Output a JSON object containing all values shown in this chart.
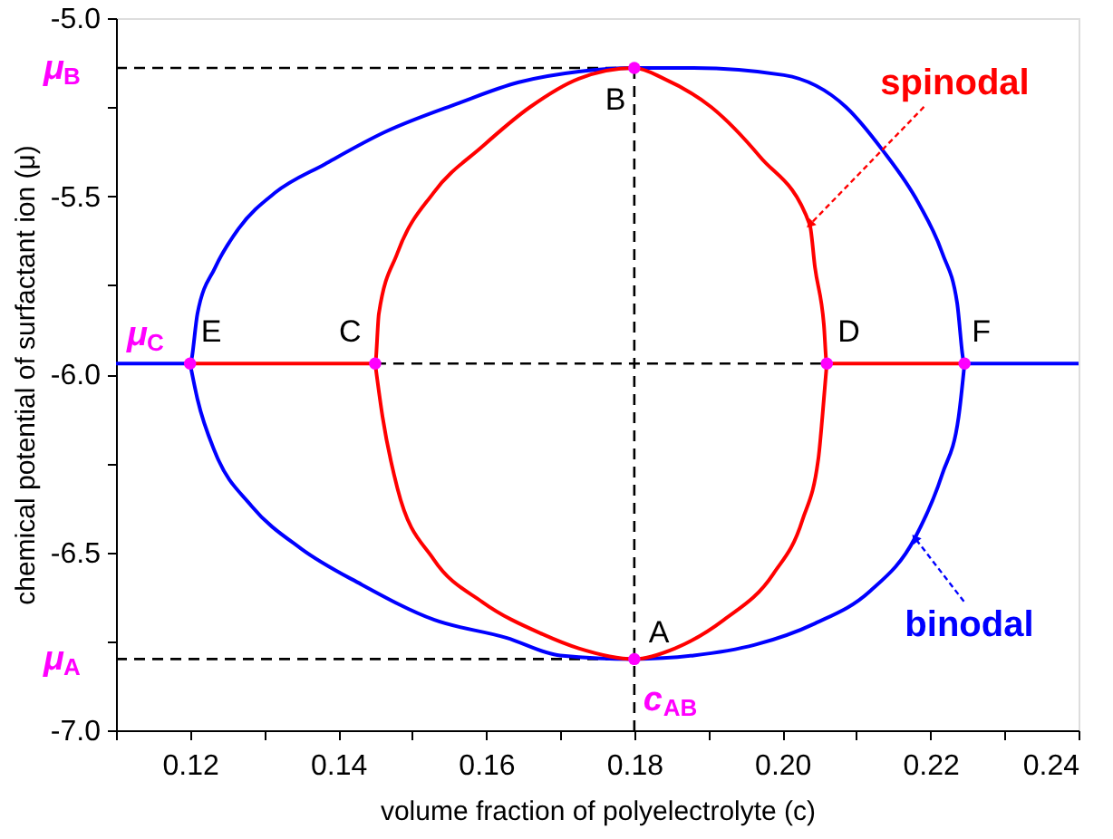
{
  "chart_data": {
    "type": "line",
    "xlabel": "volume fraction of polyelectrolyte (c)",
    "ylabel": "chemical potential of surfactant ion (μ)",
    "xlim": [
      0.11,
      0.24
    ],
    "ylim": [
      -7.0,
      -5.0
    ],
    "xticks": [
      {
        "value": 0.11,
        "label": null
      },
      0.12,
      {
        "value": 0.13,
        "label": null
      },
      0.14,
      {
        "value": 0.15,
        "label": null
      },
      0.16,
      {
        "value": 0.17,
        "label": null
      },
      0.18,
      {
        "value": 0.19,
        "label": null
      },
      {
        "value": 0.2,
        "label": "0.20"
      },
      {
        "value": 0.21,
        "label": null
      },
      0.22,
      {
        "value": 0.23,
        "label": null
      },
      0.24
    ],
    "yticks": [
      {
        "value": -7.0,
        "label": "-7.0"
      },
      {
        "value": -6.75,
        "label": null
      },
      -6.5,
      {
        "value": -6.25,
        "label": null
      },
      {
        "value": -6.0,
        "label": "-6.0"
      },
      {
        "value": -5.75,
        "label": null
      },
      -5.5,
      {
        "value": -5.25,
        "label": null
      },
      {
        "value": -5.0,
        "label": "-5.0"
      }
    ],
    "series": [
      {
        "color": "#000000",
        "line_style": "dashed",
        "x": [
          0.11,
          0.18
        ],
        "values": [
          -5.14,
          -5.14
        ]
      },
      {
        "color": "#000000",
        "line_style": "dashed",
        "x": [
          0.11,
          0.18
        ],
        "values": [
          -6.8,
          -6.8
        ]
      },
      {
        "color": "#000000",
        "line_style": "dashed",
        "x": [
          0.145,
          0.206
        ],
        "values": [
          -5.97,
          -5.97
        ]
      },
      {
        "color": "#000000",
        "line_style": "dashed",
        "x": [
          0.18,
          0.18
        ],
        "values": [
          -5.14,
          -7.0
        ]
      },
      {
        "color": "#0000ff",
        "x": [
          0.11,
          0.12,
          0.121,
          0.1234,
          0.1266,
          0.1315,
          0.1382,
          0.1463,
          0.1561,
          0.1644,
          0.1725,
          0.18,
          0.188,
          0.2002,
          0.2086,
          0.2135,
          0.2184,
          0.2216,
          0.2236,
          0.2246,
          0.24
        ],
        "values": [
          -5.97,
          -5.97,
          -5.83,
          -5.7,
          -5.59,
          -5.49,
          -5.41,
          -5.32,
          -5.24,
          -5.18,
          -5.15,
          -5.14,
          -5.14,
          -5.16,
          -5.25,
          -5.37,
          -5.52,
          -5.66,
          -5.8,
          -5.97,
          -5.97
        ]
      },
      {
        "name": "binodal",
        "color": "#0000ff",
        "x": [
          0.12,
          0.121,
          0.1234,
          0.1283,
          0.135,
          0.1431,
          0.153,
          0.1627,
          0.17,
          0.18,
          0.188,
          0.1963,
          0.2044,
          0.2118,
          0.2179,
          0.2216,
          0.2238,
          0.2246
        ],
        "values": [
          -5.97,
          -6.07,
          -6.22,
          -6.37,
          -6.49,
          -6.59,
          -6.69,
          -6.74,
          -6.79,
          -6.8,
          -6.79,
          -6.76,
          -6.7,
          -6.61,
          -6.46,
          -6.28,
          -6.12,
          -5.97
        ]
      },
      {
        "name": "spinodal",
        "color": "#ff0000",
        "x": [
          0.12,
          0.145,
          0.1455,
          0.148,
          0.1529,
          0.1595,
          0.1659,
          0.1725,
          0.18,
          0.184,
          0.1904,
          0.197,
          0.2037,
          0.2044,
          0.2056,
          0.206,
          0.2246
        ],
        "values": [
          -5.97,
          -5.97,
          -5.83,
          -5.66,
          -5.49,
          -5.36,
          -5.25,
          -5.17,
          -5.14,
          -5.17,
          -5.25,
          -5.39,
          -5.58,
          -5.7,
          -5.86,
          -5.97,
          -5.97
        ]
      },
      {
        "color": "#ff0000",
        "x": [
          0.145,
          0.146,
          0.148,
          0.1529,
          0.1595,
          0.1676,
          0.1725,
          0.18,
          0.1855,
          0.1921,
          0.1988,
          0.2027,
          0.2049,
          0.2054,
          0.206
        ],
        "values": [
          -5.97,
          -6.12,
          -6.32,
          -6.52,
          -6.64,
          -6.73,
          -6.77,
          -6.8,
          -6.77,
          -6.69,
          -6.56,
          -6.41,
          -6.23,
          -6.12,
          -5.97
        ]
      },
      {
        "type": "scatter",
        "color": "#ff00ff",
        "marker": "circle",
        "x": [
          0.18,
          0.18,
          0.145,
          0.206,
          0.12,
          0.2246
        ],
        "values": [
          -6.8,
          -5.14,
          -5.97,
          -5.97,
          -5.97,
          -5.97
        ]
      }
    ],
    "annotations": [
      {
        "text": "A",
        "x": 0.18,
        "y": -6.8
      },
      {
        "text": "B",
        "x": 0.18,
        "y": -5.14
      },
      {
        "text": "C",
        "x": 0.145,
        "y": -5.97
      },
      {
        "text": "D",
        "x": 0.206,
        "y": -5.97
      },
      {
        "text": "E",
        "x": 0.12,
        "y": -5.97
      },
      {
        "text": "F",
        "x": 0.2246,
        "y": -5.97
      },
      {
        "text": "μ$_{B}$",
        "x": 0.11,
        "y": -5.14
      },
      {
        "text": "μ$_{C}$",
        "x": 0.11,
        "y": -5.97
      },
      {
        "text": "μ$_{A}$",
        "x": 0.11,
        "y": -6.8
      },
      {
        "text": "c$_{AB}$",
        "x": 0.18,
        "y": -7.0
      }
    ]
  }
}
